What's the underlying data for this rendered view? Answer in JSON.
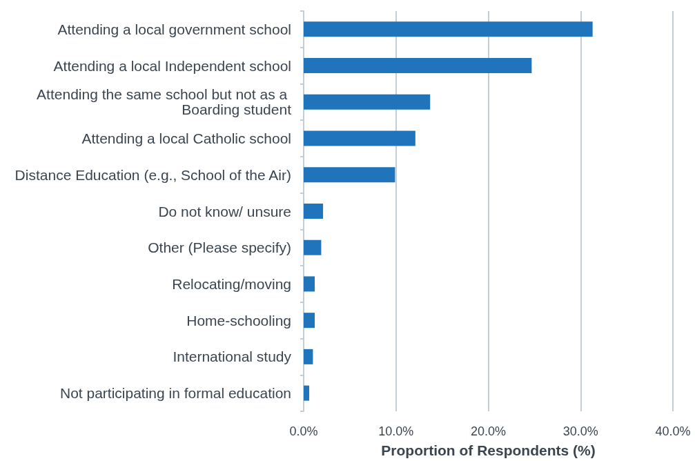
{
  "chart_data": {
    "type": "bar",
    "orientation": "horizontal",
    "xlabel": "Proportion of Respondents (%)",
    "categories": [
      "Attending a local government school",
      "Attending a local Independent school",
      "Attending the same school but not as a Boarding student",
      "Attending a local Catholic school",
      "Distance Education (e.g., School of the Air)",
      "Do not know/ unsure",
      "Other (Please specify)",
      "Relocating/moving",
      "Home-schooling",
      "International study",
      "Not participating in formal education"
    ],
    "values": [
      31.3,
      24.7,
      13.7,
      12.1,
      9.9,
      2.1,
      1.9,
      1.2,
      1.2,
      1.0,
      0.6
    ],
    "color": "#1f74bb",
    "xlim": [
      0,
      40
    ],
    "xticks": [
      {
        "value": 0,
        "label": "0.0%"
      },
      {
        "value": 10,
        "label": "10.0%"
      },
      {
        "value": 20,
        "label": "20.0%"
      },
      {
        "value": 30,
        "label": "30.0%"
      },
      {
        "value": 40,
        "label": "40.0%"
      }
    ],
    "grid": "x"
  }
}
